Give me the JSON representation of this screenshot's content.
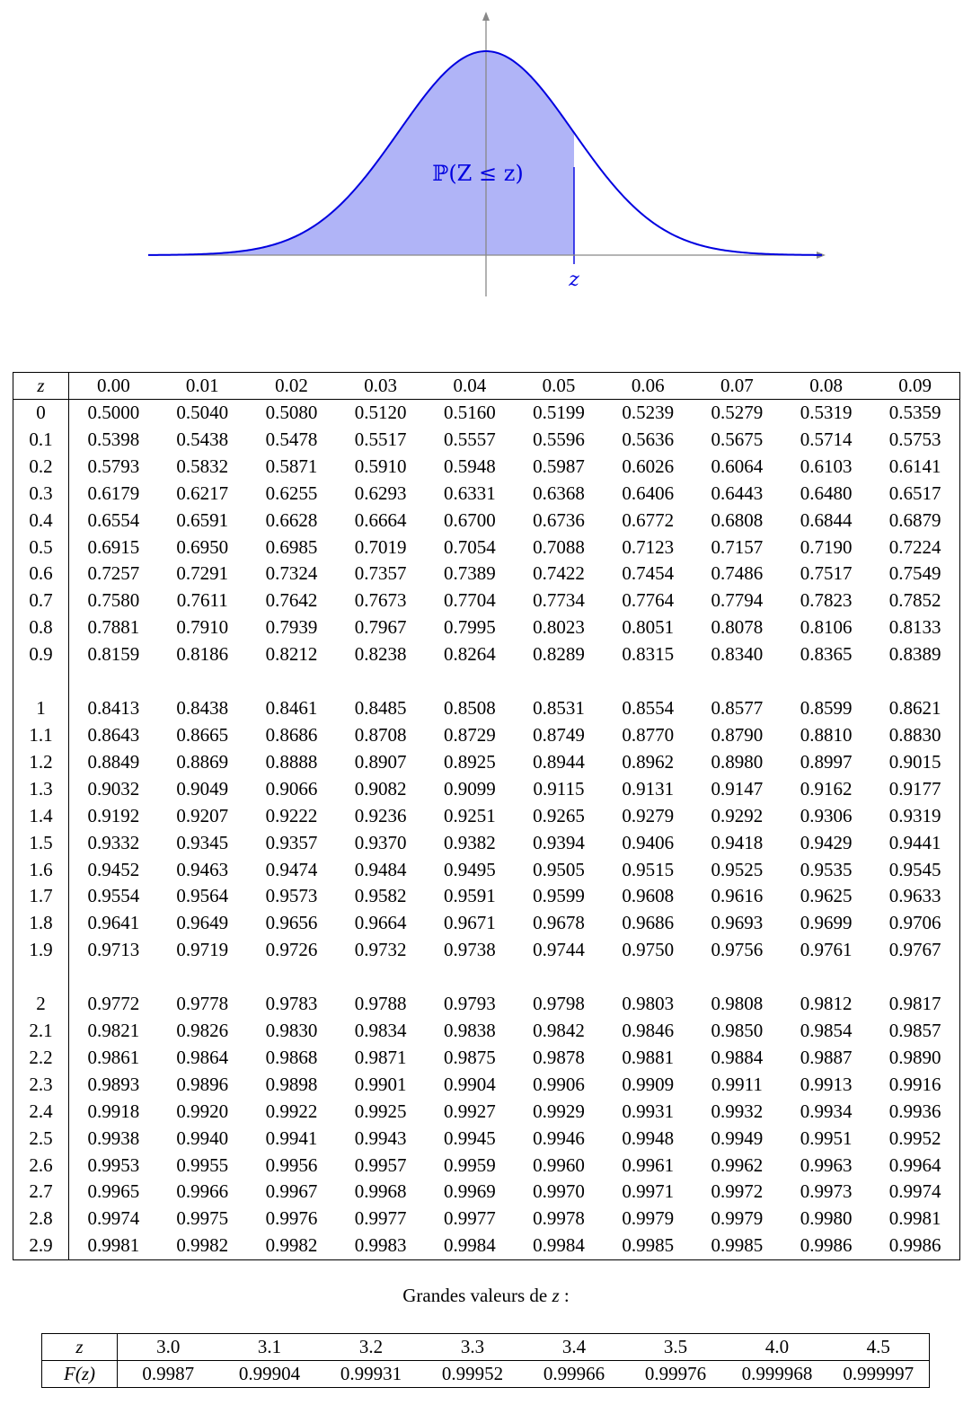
{
  "figure": {
    "area_label": "ℙ(Z ≤ z)",
    "z_label": "z",
    "curve_color": "#0000e0",
    "fill_color": "#b0b4f7"
  },
  "main_table": {
    "header": [
      "z",
      "0.00",
      "0.01",
      "0.02",
      "0.03",
      "0.04",
      "0.05",
      "0.06",
      "0.07",
      "0.08",
      "0.09"
    ],
    "groups": [
      [
        {
          "z": "0",
          "values": [
            "0.5000",
            "0.5040",
            "0.5080",
            "0.5120",
            "0.5160",
            "0.5199",
            "0.5239",
            "0.5279",
            "0.5319",
            "0.5359"
          ]
        },
        {
          "z": "0.1",
          "values": [
            "0.5398",
            "0.5438",
            "0.5478",
            "0.5517",
            "0.5557",
            "0.5596",
            "0.5636",
            "0.5675",
            "0.5714",
            "0.5753"
          ]
        },
        {
          "z": "0.2",
          "values": [
            "0.5793",
            "0.5832",
            "0.5871",
            "0.5910",
            "0.5948",
            "0.5987",
            "0.6026",
            "0.6064",
            "0.6103",
            "0.6141"
          ]
        },
        {
          "z": "0.3",
          "values": [
            "0.6179",
            "0.6217",
            "0.6255",
            "0.6293",
            "0.6331",
            "0.6368",
            "0.6406",
            "0.6443",
            "0.6480",
            "0.6517"
          ]
        },
        {
          "z": "0.4",
          "values": [
            "0.6554",
            "0.6591",
            "0.6628",
            "0.6664",
            "0.6700",
            "0.6736",
            "0.6772",
            "0.6808",
            "0.6844",
            "0.6879"
          ]
        },
        {
          "z": "0.5",
          "values": [
            "0.6915",
            "0.6950",
            "0.6985",
            "0.7019",
            "0.7054",
            "0.7088",
            "0.7123",
            "0.7157",
            "0.7190",
            "0.7224"
          ]
        },
        {
          "z": "0.6",
          "values": [
            "0.7257",
            "0.7291",
            "0.7324",
            "0.7357",
            "0.7389",
            "0.7422",
            "0.7454",
            "0.7486",
            "0.7517",
            "0.7549"
          ]
        },
        {
          "z": "0.7",
          "values": [
            "0.7580",
            "0.7611",
            "0.7642",
            "0.7673",
            "0.7704",
            "0.7734",
            "0.7764",
            "0.7794",
            "0.7823",
            "0.7852"
          ]
        },
        {
          "z": "0.8",
          "values": [
            "0.7881",
            "0.7910",
            "0.7939",
            "0.7967",
            "0.7995",
            "0.8023",
            "0.8051",
            "0.8078",
            "0.8106",
            "0.8133"
          ]
        },
        {
          "z": "0.9",
          "values": [
            "0.8159",
            "0.8186",
            "0.8212",
            "0.8238",
            "0.8264",
            "0.8289",
            "0.8315",
            "0.8340",
            "0.8365",
            "0.8389"
          ]
        }
      ],
      [
        {
          "z": "1",
          "values": [
            "0.8413",
            "0.8438",
            "0.8461",
            "0.8485",
            "0.8508",
            "0.8531",
            "0.8554",
            "0.8577",
            "0.8599",
            "0.8621"
          ]
        },
        {
          "z": "1.1",
          "values": [
            "0.8643",
            "0.8665",
            "0.8686",
            "0.8708",
            "0.8729",
            "0.8749",
            "0.8770",
            "0.8790",
            "0.8810",
            "0.8830"
          ]
        },
        {
          "z": "1.2",
          "values": [
            "0.8849",
            "0.8869",
            "0.8888",
            "0.8907",
            "0.8925",
            "0.8944",
            "0.8962",
            "0.8980",
            "0.8997",
            "0.9015"
          ]
        },
        {
          "z": "1.3",
          "values": [
            "0.9032",
            "0.9049",
            "0.9066",
            "0.9082",
            "0.9099",
            "0.9115",
            "0.9131",
            "0.9147",
            "0.9162",
            "0.9177"
          ]
        },
        {
          "z": "1.4",
          "values": [
            "0.9192",
            "0.9207",
            "0.9222",
            "0.9236",
            "0.9251",
            "0.9265",
            "0.9279",
            "0.9292",
            "0.9306",
            "0.9319"
          ]
        },
        {
          "z": "1.5",
          "values": [
            "0.9332",
            "0.9345",
            "0.9357",
            "0.9370",
            "0.9382",
            "0.9394",
            "0.9406",
            "0.9418",
            "0.9429",
            "0.9441"
          ]
        },
        {
          "z": "1.6",
          "values": [
            "0.9452",
            "0.9463",
            "0.9474",
            "0.9484",
            "0.9495",
            "0.9505",
            "0.9515",
            "0.9525",
            "0.9535",
            "0.9545"
          ]
        },
        {
          "z": "1.7",
          "values": [
            "0.9554",
            "0.9564",
            "0.9573",
            "0.9582",
            "0.9591",
            "0.9599",
            "0.9608",
            "0.9616",
            "0.9625",
            "0.9633"
          ]
        },
        {
          "z": "1.8",
          "values": [
            "0.9641",
            "0.9649",
            "0.9656",
            "0.9664",
            "0.9671",
            "0.9678",
            "0.9686",
            "0.9693",
            "0.9699",
            "0.9706"
          ]
        },
        {
          "z": "1.9",
          "values": [
            "0.9713",
            "0.9719",
            "0.9726",
            "0.9732",
            "0.9738",
            "0.9744",
            "0.9750",
            "0.9756",
            "0.9761",
            "0.9767"
          ]
        }
      ],
      [
        {
          "z": "2",
          "values": [
            "0.9772",
            "0.9778",
            "0.9783",
            "0.9788",
            "0.9793",
            "0.9798",
            "0.9803",
            "0.9808",
            "0.9812",
            "0.9817"
          ]
        },
        {
          "z": "2.1",
          "values": [
            "0.9821",
            "0.9826",
            "0.9830",
            "0.9834",
            "0.9838",
            "0.9842",
            "0.9846",
            "0.9850",
            "0.9854",
            "0.9857"
          ]
        },
        {
          "z": "2.2",
          "values": [
            "0.9861",
            "0.9864",
            "0.9868",
            "0.9871",
            "0.9875",
            "0.9878",
            "0.9881",
            "0.9884",
            "0.9887",
            "0.9890"
          ]
        },
        {
          "z": "2.3",
          "values": [
            "0.9893",
            "0.9896",
            "0.9898",
            "0.9901",
            "0.9904",
            "0.9906",
            "0.9909",
            "0.9911",
            "0.9913",
            "0.9916"
          ]
        },
        {
          "z": "2.4",
          "values": [
            "0.9918",
            "0.9920",
            "0.9922",
            "0.9925",
            "0.9927",
            "0.9929",
            "0.9931",
            "0.9932",
            "0.9934",
            "0.9936"
          ]
        },
        {
          "z": "2.5",
          "values": [
            "0.9938",
            "0.9940",
            "0.9941",
            "0.9943",
            "0.9945",
            "0.9946",
            "0.9948",
            "0.9949",
            "0.9951",
            "0.9952"
          ]
        },
        {
          "z": "2.6",
          "values": [
            "0.9953",
            "0.9955",
            "0.9956",
            "0.9957",
            "0.9959",
            "0.9960",
            "0.9961",
            "0.9962",
            "0.9963",
            "0.9964"
          ]
        },
        {
          "z": "2.7",
          "values": [
            "0.9965",
            "0.9966",
            "0.9967",
            "0.9968",
            "0.9969",
            "0.9970",
            "0.9971",
            "0.9972",
            "0.9973",
            "0.9974"
          ]
        },
        {
          "z": "2.8",
          "values": [
            "0.9974",
            "0.9975",
            "0.9976",
            "0.9977",
            "0.9977",
            "0.9978",
            "0.9979",
            "0.9979",
            "0.9980",
            "0.9981"
          ]
        },
        {
          "z": "2.9",
          "values": [
            "0.9981",
            "0.9982",
            "0.9982",
            "0.9983",
            "0.9984",
            "0.9984",
            "0.9985",
            "0.9985",
            "0.9986",
            "0.9986"
          ]
        }
      ]
    ]
  },
  "large_values": {
    "caption_text": "Grandes valeurs de ",
    "caption_var": "z",
    "caption_suffix": " :",
    "z_header": "z",
    "fz_header": "F(z)",
    "z": [
      "3.0",
      "3.1",
      "3.2",
      "3.3",
      "3.4",
      "3.5",
      "4.0",
      "4.5"
    ],
    "fz": [
      "0.9987",
      "0.99904",
      "0.99931",
      "0.99952",
      "0.99966",
      "0.99976",
      "0.999968",
      "0.999997"
    ]
  }
}
